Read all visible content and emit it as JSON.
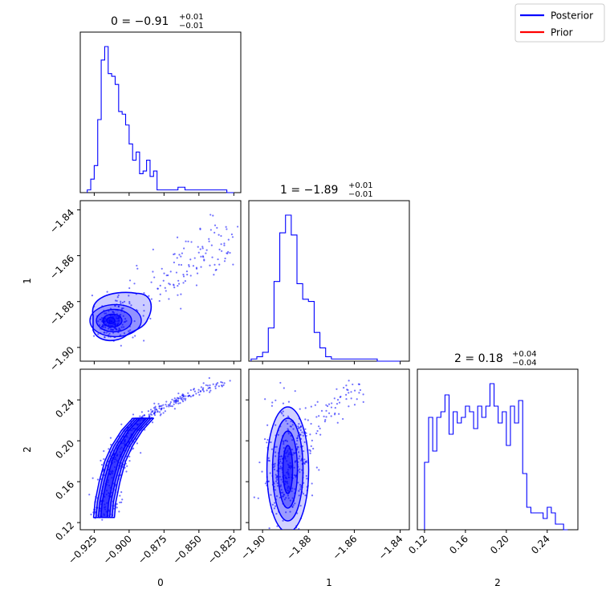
{
  "chart_data": {
    "type": "corner",
    "colors": {
      "posterior": "#0000ff",
      "prior": "#ff0000",
      "axes": "#000000"
    },
    "legend": {
      "placement": "top-right",
      "entries": [
        {
          "label": "Posterior",
          "color": "#0000ff"
        },
        {
          "label": "Prior",
          "color": "#ff0000"
        }
      ]
    },
    "titles": [
      {
        "param": "0",
        "median": "−0.91",
        "plus": "+0.01",
        "minus": "−0.01"
      },
      {
        "param": "1",
        "median": "−1.89",
        "plus": "+0.01",
        "minus": "−0.01"
      },
      {
        "param": "2",
        "median": "0.18",
        "plus": "+0.04",
        "minus": "−0.04"
      }
    ],
    "axes_labels": {
      "x": [
        "0",
        "1",
        "2"
      ],
      "y": [
        "",
        "1",
        "2"
      ]
    },
    "ranges": {
      "p0": [
        -0.935,
        -0.82
      ],
      "p1": [
        -1.906,
        -1.836
      ],
      "p2": [
        0.113,
        0.27
      ]
    },
    "ticks": {
      "p0": {
        "values": [
          -0.925,
          -0.9,
          -0.875,
          -0.85,
          -0.825
        ],
        "labels": [
          "−0.925",
          "−0.900",
          "−0.875",
          "−0.850",
          "−0.825"
        ]
      },
      "p1": {
        "values": [
          -1.9,
          -1.88,
          -1.86,
          -1.84
        ],
        "labels": [
          "−1.90",
          "−1.88",
          "−1.86",
          "−1.84"
        ]
      },
      "p2": {
        "values": [
          0.12,
          0.16,
          0.2,
          0.24
        ],
        "labels": [
          "0.12",
          "0.16",
          "0.20",
          "0.24"
        ]
      }
    },
    "hist_p0": {
      "bins": [
        -0.93,
        -0.9275,
        -0.925,
        -0.9225,
        -0.92,
        -0.9175,
        -0.915,
        -0.9125,
        -0.91,
        -0.9075,
        -0.905,
        -0.9025,
        -0.9,
        -0.8975,
        -0.895,
        -0.8925,
        -0.89,
        -0.8875,
        -0.885,
        -0.8825,
        -0.88,
        -0.875,
        -0.87,
        -0.865,
        -0.86,
        -0.855,
        -0.85,
        -0.845,
        -0.84,
        -0.835,
        -0.83,
        -0.825
      ],
      "counts": [
        1,
        5,
        10,
        27,
        49,
        54,
        44,
        43,
        40,
        30,
        29,
        25,
        18,
        12,
        15,
        7,
        8,
        12,
        6,
        8,
        1,
        1,
        1,
        2,
        1,
        1,
        1,
        1,
        1,
        1,
        0
      ]
    },
    "hist_p1": {
      "bins": [
        -1.905,
        -1.9025,
        -1.9,
        -1.8975,
        -1.895,
        -1.8925,
        -1.89,
        -1.8875,
        -1.885,
        -1.8825,
        -1.88,
        -1.8775,
        -1.875,
        -1.8725,
        -1.87,
        -1.865,
        -1.86,
        -1.855,
        -1.85,
        -1.845,
        -1.84
      ],
      "counts": [
        1,
        2,
        4,
        15,
        36,
        58,
        66,
        57,
        35,
        28,
        27,
        13,
        6,
        2,
        1,
        1,
        1,
        1,
        0,
        0
      ]
    },
    "hist_p2": {
      "bins": [
        0.12,
        0.124,
        0.128,
        0.132,
        0.136,
        0.14,
        0.144,
        0.148,
        0.152,
        0.156,
        0.16,
        0.164,
        0.168,
        0.172,
        0.176,
        0.18,
        0.184,
        0.188,
        0.192,
        0.196,
        0.2,
        0.204,
        0.208,
        0.212,
        0.216,
        0.22,
        0.224,
        0.228,
        0.232,
        0.236,
        0.24,
        0.244,
        0.248,
        0.252,
        0.256,
        0.26
      ],
      "counts": [
        12,
        20,
        14,
        20,
        21,
        24,
        17,
        21,
        19,
        20,
        22,
        21,
        18,
        22,
        20,
        22,
        26,
        22,
        19,
        21,
        15,
        22,
        19,
        23,
        10,
        4,
        3,
        3,
        3,
        2,
        4,
        3,
        1,
        1,
        0
      ]
    },
    "scatter_p0_p1": {
      "note_type": "ellipse-cloud",
      "core": {
        "center": [
          -0.912,
          -1.889
        ],
        "spread": [
          0.007,
          0.004
        ]
      },
      "tail": {
        "from": [
          -0.905,
          -1.885
        ],
        "to": [
          -0.828,
          -1.852
        ]
      }
    },
    "scatter_p0_p2": {
      "curve": [
        [
          -0.918,
          0.125
        ],
        [
          -0.917,
          0.14
        ],
        [
          -0.914,
          0.16
        ],
        [
          -0.91,
          0.18
        ],
        [
          -0.905,
          0.195
        ],
        [
          -0.898,
          0.21
        ],
        [
          -0.89,
          0.222
        ],
        [
          -0.875,
          0.235
        ],
        [
          -0.855,
          0.247
        ],
        [
          -0.83,
          0.258
        ]
      ]
    },
    "scatter_p1_p2": {
      "core": {
        "center": [
          -1.889,
          0.175
        ],
        "spread": [
          0.005,
          0.03
        ]
      },
      "tail": {
        "from": [
          -1.884,
          0.205
        ],
        "to": [
          -1.856,
          0.258
        ]
      }
    }
  }
}
